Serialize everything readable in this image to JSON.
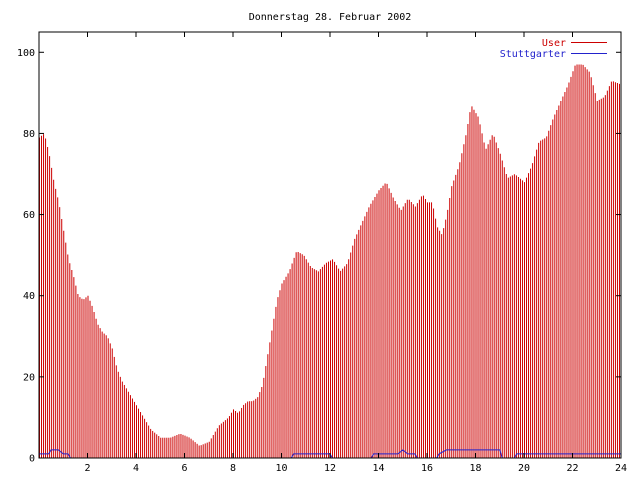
{
  "chart_data": {
    "type": "bar",
    "title": "Donnerstag 28. Februar 2002",
    "xlabel": "",
    "ylabel": "",
    "xlim": [
      0,
      24
    ],
    "ylim": [
      0,
      105
    ],
    "x_ticks": [
      2,
      4,
      6,
      8,
      10,
      12,
      14,
      16,
      18,
      20,
      22,
      24
    ],
    "y_ticks": [
      0,
      20,
      40,
      60,
      80,
      100
    ],
    "grid": false,
    "legend_position": "top-right",
    "series": [
      {
        "name": "User",
        "style": "impulses",
        "color": "#cc0000",
        "keypoints": [
          [
            0.0,
            79
          ],
          [
            0.2,
            80
          ],
          [
            0.4,
            75
          ],
          [
            0.6,
            68
          ],
          [
            0.8,
            63
          ],
          [
            1.0,
            56
          ],
          [
            1.2,
            49
          ],
          [
            1.4,
            45
          ],
          [
            1.6,
            40
          ],
          [
            1.8,
            39
          ],
          [
            2.0,
            40
          ],
          [
            2.2,
            37
          ],
          [
            2.4,
            33
          ],
          [
            2.6,
            31
          ],
          [
            2.8,
            30
          ],
          [
            3.0,
            27
          ],
          [
            3.2,
            22
          ],
          [
            3.4,
            19
          ],
          [
            3.6,
            17
          ],
          [
            3.8,
            15
          ],
          [
            4.0,
            13
          ],
          [
            4.2,
            11
          ],
          [
            4.4,
            9
          ],
          [
            4.6,
            7
          ],
          [
            4.8,
            6
          ],
          [
            5.0,
            5
          ],
          [
            5.4,
            5
          ],
          [
            5.8,
            6
          ],
          [
            6.2,
            5
          ],
          [
            6.6,
            3
          ],
          [
            7.0,
            4
          ],
          [
            7.2,
            6
          ],
          [
            7.4,
            8
          ],
          [
            7.6,
            9
          ],
          [
            7.8,
            10
          ],
          [
            8.0,
            12
          ],
          [
            8.2,
            11
          ],
          [
            8.4,
            13
          ],
          [
            8.6,
            14
          ],
          [
            8.8,
            14
          ],
          [
            9.0,
            15
          ],
          [
            9.2,
            18
          ],
          [
            9.4,
            25
          ],
          [
            9.6,
            32
          ],
          [
            9.8,
            39
          ],
          [
            10.0,
            43
          ],
          [
            10.3,
            46
          ],
          [
            10.6,
            51
          ],
          [
            10.9,
            50
          ],
          [
            11.2,
            47
          ],
          [
            11.5,
            46
          ],
          [
            11.8,
            48
          ],
          [
            12.1,
            49
          ],
          [
            12.4,
            46
          ],
          [
            12.7,
            48
          ],
          [
            13.0,
            54
          ],
          [
            13.3,
            58
          ],
          [
            13.6,
            62
          ],
          [
            14.0,
            66
          ],
          [
            14.3,
            68
          ],
          [
            14.6,
            64
          ],
          [
            14.9,
            61
          ],
          [
            15.2,
            64
          ],
          [
            15.5,
            62
          ],
          [
            15.8,
            65
          ],
          [
            16.0,
            63
          ],
          [
            16.2,
            63
          ],
          [
            16.4,
            57
          ],
          [
            16.6,
            55
          ],
          [
            16.8,
            60
          ],
          [
            17.0,
            67
          ],
          [
            17.3,
            72
          ],
          [
            17.6,
            80
          ],
          [
            17.8,
            87
          ],
          [
            18.1,
            84
          ],
          [
            18.4,
            76
          ],
          [
            18.7,
            80
          ],
          [
            19.0,
            75
          ],
          [
            19.3,
            69
          ],
          [
            19.6,
            70
          ],
          [
            20.0,
            68
          ],
          [
            20.3,
            72
          ],
          [
            20.6,
            78
          ],
          [
            20.9,
            79
          ],
          [
            21.2,
            84
          ],
          [
            21.5,
            88
          ],
          [
            21.8,
            92
          ],
          [
            22.1,
            97
          ],
          [
            22.4,
            97
          ],
          [
            22.7,
            95
          ],
          [
            23.0,
            88
          ],
          [
            23.3,
            89
          ],
          [
            23.6,
            93
          ],
          [
            24.0,
            92
          ]
        ]
      },
      {
        "name": "Stuttgarter",
        "style": "lines",
        "color": "#2222cc",
        "keypoints": [
          [
            0.0,
            1
          ],
          [
            0.4,
            1
          ],
          [
            0.5,
            2
          ],
          [
            0.8,
            2
          ],
          [
            1.0,
            1
          ],
          [
            1.2,
            1
          ],
          [
            1.3,
            0
          ],
          [
            10.4,
            0
          ],
          [
            10.5,
            1
          ],
          [
            12.0,
            1
          ],
          [
            12.1,
            0
          ],
          [
            13.7,
            0
          ],
          [
            13.8,
            1
          ],
          [
            14.8,
            1
          ],
          [
            15.0,
            2
          ],
          [
            15.2,
            1
          ],
          [
            15.5,
            1
          ],
          [
            15.6,
            0
          ],
          [
            16.4,
            0
          ],
          [
            16.5,
            1
          ],
          [
            16.8,
            2
          ],
          [
            19.0,
            2
          ],
          [
            19.1,
            0
          ],
          [
            19.6,
            0
          ],
          [
            19.7,
            1
          ],
          [
            24.0,
            1
          ]
        ]
      }
    ]
  }
}
